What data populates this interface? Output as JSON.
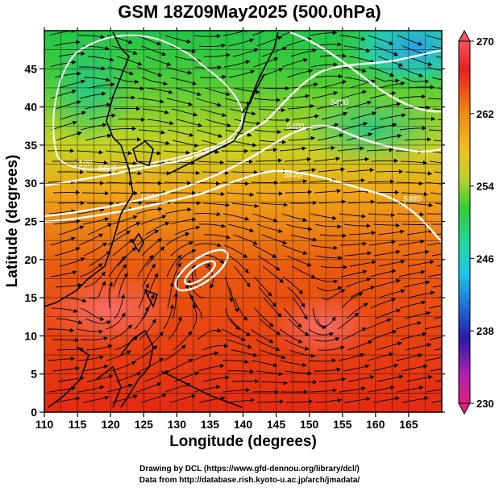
{
  "title": "GSM 18Z09May2025 (500.0hPa)",
  "xlabel": "Longitude (degrees)",
  "ylabel": "Latitude  (degrees)",
  "credits": [
    "Drawing by DCL (https://www.gfd-dennou.org/library/dcl/)",
    "Data from http://database.rish.kyoto-u.ac.jp/arch/jmadata/"
  ],
  "map": {
    "lon_range": [
      110,
      170
    ],
    "lat_range": [
      0,
      50
    ],
    "x_ticks": [
      "110",
      "115",
      "120",
      "125",
      "130",
      "135",
      "140",
      "145",
      "150",
      "155",
      "160",
      "165"
    ],
    "y_ticks": [
      "0",
      "5",
      "10",
      "15",
      "20",
      "25",
      "30",
      "35",
      "40",
      "45"
    ],
    "contour_labels": [
      "5100",
      "5400",
      "5400",
      "5820",
      "5820",
      "5880",
      "5880"
    ],
    "colorbar": {
      "min": 230,
      "max": 270,
      "tick_labels": [
        "270",
        "262",
        "254",
        "246",
        "238",
        "230"
      ],
      "colors": [
        "#e0207a",
        "#b020b0",
        "#2a1aa8",
        "#1f6fd8",
        "#1cc7e8",
        "#21d8a0",
        "#33cc33",
        "#b8d22a",
        "#f0c020",
        "#f08a10",
        "#e8400f",
        "#e82020",
        "#f85060"
      ]
    }
  }
}
